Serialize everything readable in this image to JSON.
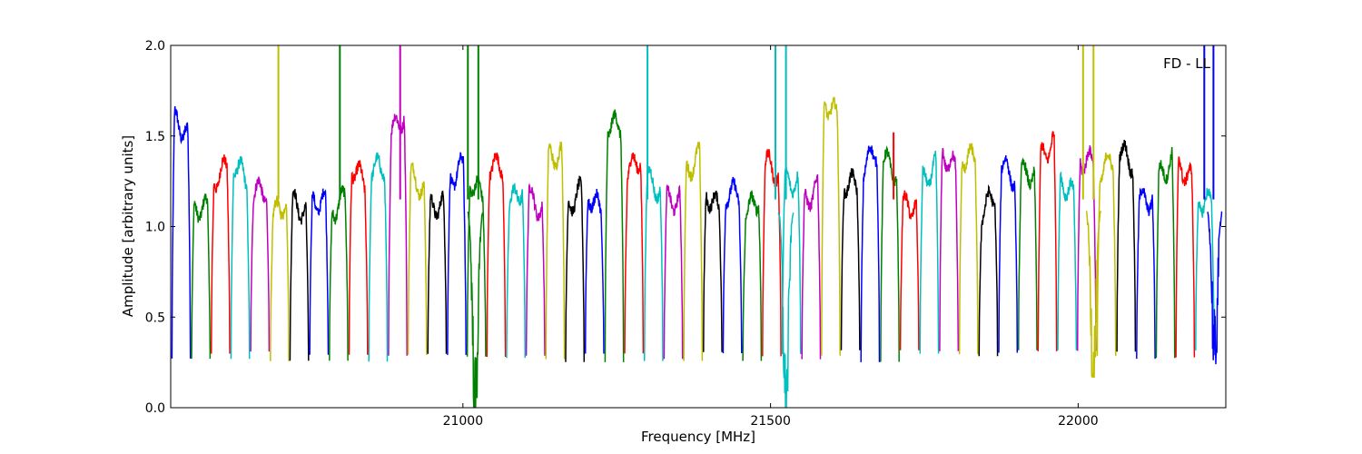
{
  "chart_data": {
    "type": "line",
    "title": "",
    "xlabel": "Frequency [MHz]",
    "ylabel": "Amplitude [arbitrary units]",
    "xlim": [
      20525,
      22240
    ],
    "ylim": [
      0,
      2
    ],
    "x_ticks": [
      21000,
      21500,
      22000
    ],
    "x_tick_labels": [
      "21000",
      "21500",
      "22000"
    ],
    "y_ticks": [
      0,
      0.5,
      1,
      1.5,
      2
    ],
    "y_tick_labels": [
      "0.0",
      "0.5",
      "1.0",
      "1.5",
      "2.0"
    ],
    "grid": false,
    "annotation": "FD - LL",
    "colors": [
      "#0000ff",
      "#008000",
      "#ff0000",
      "#00bfbf",
      "#bf00bf",
      "#bfbf00",
      "#000000"
    ],
    "band_width_mhz": 32,
    "band_count": 53,
    "band_start_mhz": 20527,
    "band_edge_min": 0.3,
    "band_peak_typical": 1.25,
    "spikes": [
      {
        "x": 20700,
        "color": "#bfbf00",
        "top": 2.0
      },
      {
        "x": 20800,
        "color": "#008000",
        "top": 2.0
      },
      {
        "x": 20898,
        "color": "#bf00bf",
        "top": 2.0
      },
      {
        "x": 21008,
        "color": "#008000",
        "top": 2.0
      },
      {
        "x": 21025,
        "color": "#008000",
        "top": 2.0
      },
      {
        "x": 21300,
        "color": "#00bfbf",
        "top": 2.0
      },
      {
        "x": 21508,
        "color": "#00bfbf",
        "top": 2.0
      },
      {
        "x": 21525,
        "color": "#00bfbf",
        "top": 2.0
      },
      {
        "x": 21700,
        "color": "#ff0000",
        "top": 1.52
      },
      {
        "x": 22008,
        "color": "#bfbf00",
        "top": 2.0
      },
      {
        "x": 22025,
        "color": "#bfbf00",
        "top": 2.0
      },
      {
        "x": 22205,
        "color": "#0000ff",
        "top": 2.0
      },
      {
        "x": 22220,
        "color": "#0000ff",
        "top": 2.0
      }
    ],
    "dips": [
      {
        "x": 21020,
        "color": "#008000",
        "min": 0.0
      },
      {
        "x": 21525,
        "color": "#00bfbf",
        "min": 0.0
      },
      {
        "x": 22025,
        "color": "#bfbf00",
        "min": 0.17
      },
      {
        "x": 22222,
        "color": "#0000ff",
        "min": 0.24
      }
    ]
  }
}
